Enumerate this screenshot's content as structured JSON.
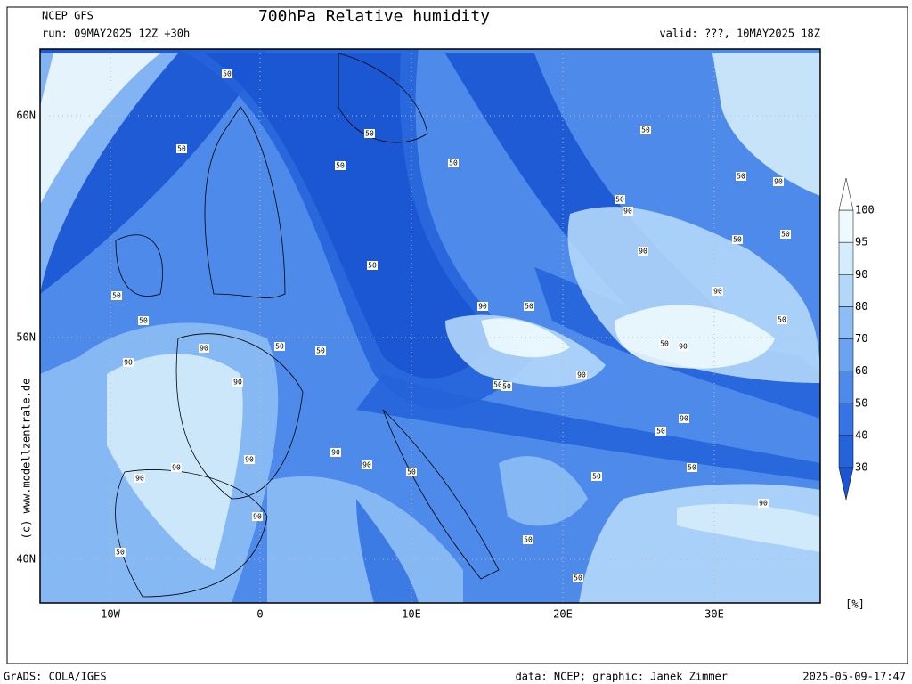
{
  "header": {
    "model": "NCEP GFS",
    "run": "run: 09MAY2025 12Z +30h",
    "title": "700hPa Relative humidity",
    "valid": "valid: ???, 10MAY2025 18Z"
  },
  "map": {
    "lon_labels": [
      "10W",
      "0",
      "10E",
      "20E",
      "30E"
    ],
    "lat_labels": [
      "60N",
      "50N",
      "40N"
    ],
    "contour_labels": [
      "50",
      "50",
      "50",
      "50",
      "50",
      "50",
      "50",
      "90",
      "90",
      "90",
      "50",
      "50",
      "90",
      "50",
      "50",
      "50",
      "90",
      "50",
      "90",
      "50",
      "90",
      "90",
      "50",
      "50",
      "90",
      "50",
      "50",
      "90",
      "50",
      "90",
      "50",
      "50",
      "50",
      "90",
      "50",
      "50",
      "50",
      "90",
      "50",
      "90",
      "90",
      "90",
      "90",
      "50",
      "90"
    ]
  },
  "colorbar": {
    "levels": [
      30,
      40,
      50,
      60,
      70,
      80,
      90,
      95,
      100
    ],
    "colors": [
      "#1a55d2",
      "#2563da",
      "#3574e2",
      "#4d8aea",
      "#6ba3f1",
      "#8dbdf5",
      "#b3d7f9",
      "#d4ecfb",
      "#eef9fd",
      "#ffffff"
    ],
    "unit": "[%]"
  },
  "watermark": "(c) www.modellzentrale.de",
  "footer": {
    "software": "GrADS: COLA/IGES",
    "credits": "data: NCEP; graphic: Janek Zimmer",
    "timestamp": "2025-05-09-17:47"
  }
}
